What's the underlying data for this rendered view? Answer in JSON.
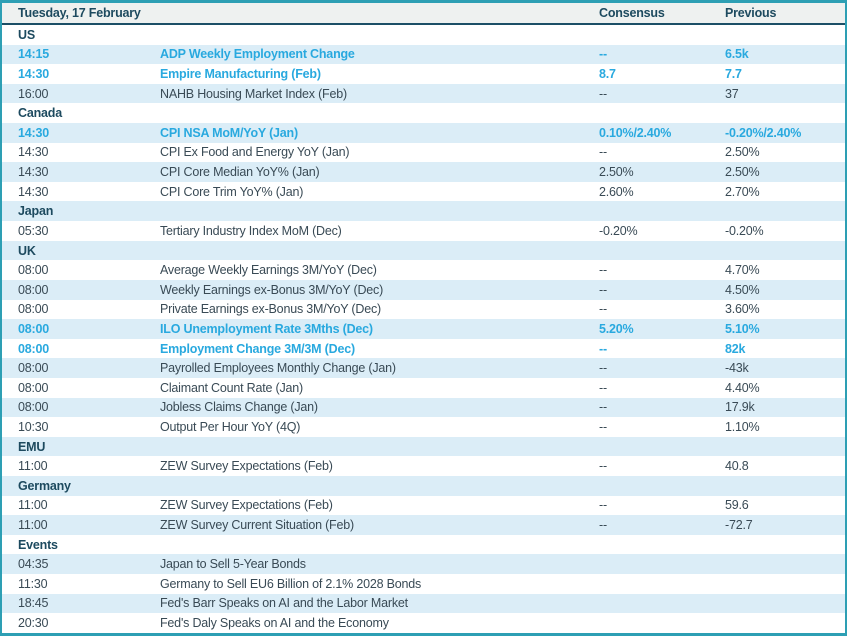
{
  "theme": {
    "border_teal": "#2d9fb4",
    "header_rule_navy": "#1c4f66",
    "header_bg": "#eef1f0",
    "row_stripe_blue": "#dbedf7",
    "dark_text": "#1d4a5f",
    "body_text": "#394a55",
    "highlight_cyan": "#29a9df"
  },
  "header": {
    "title": "Tuesday, 17 February",
    "consensus_label": "Consensus",
    "previous_label": "Previous"
  },
  "sections": [
    {
      "name": "US",
      "rows": [
        {
          "time": "14:15",
          "event": "ADP Weekly Employment Change",
          "consensus": "--",
          "previous": "6.5k",
          "highlight": true
        },
        {
          "time": "14:30",
          "event": "Empire Manufacturing (Feb)",
          "consensus": "8.7",
          "previous": "7.7",
          "highlight": true
        },
        {
          "time": "16:00",
          "event": "NAHB Housing Market Index (Feb)",
          "consensus": "--",
          "previous": "37",
          "highlight": false
        }
      ]
    },
    {
      "name": "Canada",
      "rows": [
        {
          "time": "14:30",
          "event": "CPI NSA MoM/YoY (Jan)",
          "consensus": "0.10%/2.40%",
          "previous": "-0.20%/2.40%",
          "highlight": true
        },
        {
          "time": "14:30",
          "event": "CPI Ex Food and Energy YoY (Jan)",
          "consensus": "--",
          "previous": "2.50%",
          "highlight": false
        },
        {
          "time": "14:30",
          "event": "CPI Core Median YoY% (Jan)",
          "consensus": "2.50%",
          "previous": "2.50%",
          "highlight": false
        },
        {
          "time": "14:30",
          "event": "CPI Core Trim YoY% (Jan)",
          "consensus": "2.60%",
          "previous": "2.70%",
          "highlight": false
        }
      ]
    },
    {
      "name": "Japan",
      "rows": [
        {
          "time": "05:30",
          "event": "Tertiary Industry Index MoM (Dec)",
          "consensus": "-0.20%",
          "previous": "-0.20%",
          "highlight": false
        }
      ]
    },
    {
      "name": "UK",
      "rows": [
        {
          "time": "08:00",
          "event": "Average Weekly Earnings 3M/YoY (Dec)",
          "consensus": "--",
          "previous": "4.70%",
          "highlight": false
        },
        {
          "time": "08:00",
          "event": "Weekly Earnings ex-Bonus 3M/YoY (Dec)",
          "consensus": "--",
          "previous": "4.50%",
          "highlight": false
        },
        {
          "time": "08:00",
          "event": "Private Earnings ex-Bonus 3M/YoY (Dec)",
          "consensus": "--",
          "previous": "3.60%",
          "highlight": false
        },
        {
          "time": "08:00",
          "event": "ILO Unemployment Rate 3Mths (Dec)",
          "consensus": "5.20%",
          "previous": "5.10%",
          "highlight": true
        },
        {
          "time": "08:00",
          "event": "Employment Change 3M/3M (Dec)",
          "consensus": "--",
          "previous": "82k",
          "highlight": true
        },
        {
          "time": "08:00",
          "event": "Payrolled Employees Monthly Change (Jan)",
          "consensus": "--",
          "previous": "-43k",
          "highlight": false
        },
        {
          "time": "08:00",
          "event": "Claimant Count Rate (Jan)",
          "consensus": "--",
          "previous": "4.40%",
          "highlight": false
        },
        {
          "time": "08:00",
          "event": "Jobless Claims Change (Jan)",
          "consensus": "--",
          "previous": "17.9k",
          "highlight": false
        },
        {
          "time": "10:30",
          "event": "Output Per Hour YoY (4Q)",
          "consensus": "--",
          "previous": "1.10%",
          "highlight": false
        }
      ]
    },
    {
      "name": "EMU",
      "rows": [
        {
          "time": "11:00",
          "event": "ZEW Survey Expectations (Feb)",
          "consensus": "--",
          "previous": "40.8",
          "highlight": false
        }
      ]
    },
    {
      "name": "Germany",
      "rows": [
        {
          "time": "11:00",
          "event": "ZEW Survey Expectations (Feb)",
          "consensus": "--",
          "previous": "59.6",
          "highlight": false
        },
        {
          "time": "11:00",
          "event": "ZEW Survey Current Situation (Feb)",
          "consensus": "--",
          "previous": "-72.7",
          "highlight": false
        }
      ]
    },
    {
      "name": "Events",
      "rows": [
        {
          "time": "04:35",
          "event": "Japan to Sell 5-Year Bonds",
          "consensus": "",
          "previous": "",
          "highlight": false
        },
        {
          "time": "11:30",
          "event": "Germany to Sell EU6 Billion of 2.1% 2028 Bonds",
          "consensus": "",
          "previous": "",
          "highlight": false
        },
        {
          "time": "18:45",
          "event": "Fed's Barr Speaks on AI and the Labor Market",
          "consensus": "",
          "previous": "",
          "highlight": false
        },
        {
          "time": "20:30",
          "event": "Fed's Daly Speaks on AI and the Economy",
          "consensus": "",
          "previous": "",
          "highlight": false
        }
      ]
    }
  ]
}
